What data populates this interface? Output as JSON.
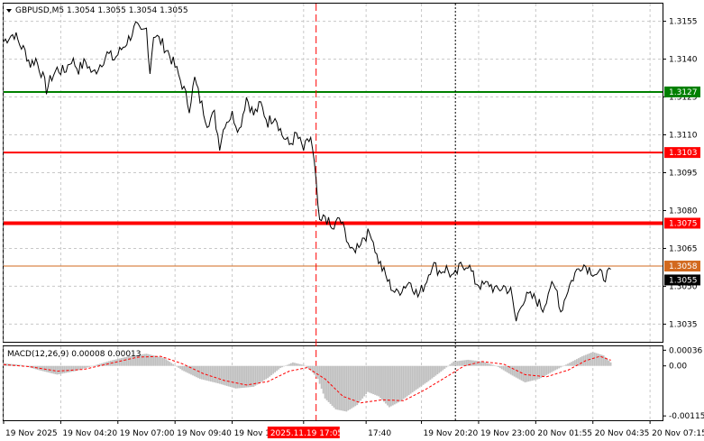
{
  "header": {
    "symbol_line": "GBPUSD,M5  1.3054 1.3055 1.3054 1.3055"
  },
  "colors": {
    "price_line": "#000000",
    "grid": "#c8c8c8",
    "level_green": "#008000",
    "level_red": "#ff0000",
    "level_orange": "#d2691e",
    "macd_hist": "#c0c0c0",
    "macd_signal": "#ff0000",
    "vline_red": "#ff0000"
  },
  "chart_data": [
    {
      "type": "line",
      "ylim": [
        1.3028,
        1.3162
      ],
      "y_ticks": [
        "1.3155",
        "1.3140",
        "1.3125",
        "1.3110",
        "1.3095",
        "1.3080",
        "1.3065",
        "1.3050",
        "1.3035"
      ],
      "y_tick_values": [
        1.3155,
        1.314,
        1.3125,
        1.311,
        1.3095,
        1.308,
        1.3065,
        1.305,
        1.3035
      ],
      "x_labels": [
        "19 Nov 2025",
        "19 Nov 04:20",
        "19 Nov 07:00",
        "19 Nov 09:40",
        "19 Nov 12:20",
        "2025.11.19 17:05",
        "17:40",
        "19 Nov 20:20",
        "19 Nov 23:00",
        "20 Nov 01:55",
        "20 Nov 04:35",
        "20 Nov 07:15"
      ],
      "x_label_index": [
        0,
        32,
        64,
        96,
        128,
        168,
        203,
        234,
        266,
        298,
        330,
        362
      ],
      "n_points": 370,
      "price_anchors": [
        [
          0,
          1.3147
        ],
        [
          3,
          1.3149
        ],
        [
          6,
          1.315
        ],
        [
          9,
          1.3146
        ],
        [
          12,
          1.3143
        ],
        [
          15,
          1.3138
        ],
        [
          18,
          1.314
        ],
        [
          21,
          1.3135
        ],
        [
          24,
          1.3128
        ],
        [
          27,
          1.3133
        ],
        [
          30,
          1.3136
        ],
        [
          34,
          1.3135
        ],
        [
          38,
          1.314
        ],
        [
          42,
          1.3136
        ],
        [
          46,
          1.3139
        ],
        [
          50,
          1.3134
        ],
        [
          54,
          1.3138
        ],
        [
          58,
          1.3142
        ],
        [
          62,
          1.314
        ],
        [
          66,
          1.3144
        ],
        [
          70,
          1.3148
        ],
        [
          74,
          1.3153
        ],
        [
          77,
          1.315
        ],
        [
          80,
          1.3152
        ],
        [
          82,
          1.3135
        ],
        [
          84,
          1.315
        ],
        [
          88,
          1.3147
        ],
        [
          92,
          1.3143
        ],
        [
          96,
          1.3137
        ],
        [
          100,
          1.313
        ],
        [
          104,
          1.3121
        ],
        [
          107,
          1.3132
        ],
        [
          110,
          1.3124
        ],
        [
          114,
          1.3115
        ],
        [
          118,
          1.3118
        ],
        [
          121,
          1.3106
        ],
        [
          124,
          1.3115
        ],
        [
          128,
          1.3118
        ],
        [
          132,
          1.3112
        ],
        [
          136,
          1.3125
        ],
        [
          140,
          1.3118
        ],
        [
          144,
          1.3122
        ],
        [
          148,
          1.3115
        ],
        [
          152,
          1.3118
        ],
        [
          156,
          1.311
        ],
        [
          160,
          1.3106
        ],
        [
          164,
          1.311
        ],
        [
          168,
          1.3104
        ],
        [
          172,
          1.3109
        ],
        [
          174,
          1.3098
        ],
        [
          177,
          1.3074
        ],
        [
          180,
          1.3078
        ],
        [
          184,
          1.3072
        ],
        [
          188,
          1.3077
        ],
        [
          192,
          1.307
        ],
        [
          195,
          1.3063
        ],
        [
          198,
          1.3066
        ],
        [
          202,
          1.307
        ],
        [
          206,
          1.3071
        ],
        [
          209,
          1.3062
        ],
        [
          212,
          1.3057
        ],
        [
          216,
          1.3051
        ],
        [
          220,
          1.3047
        ],
        [
          224,
          1.305
        ],
        [
          228,
          1.3052
        ],
        [
          232,
          1.3046
        ],
        [
          236,
          1.3051
        ],
        [
          240,
          1.3059
        ],
        [
          244,
          1.3056
        ],
        [
          248,
          1.3057
        ],
        [
          252,
          1.3053
        ],
        [
          256,
          1.3058
        ],
        [
          260,
          1.3059
        ],
        [
          264,
          1.3052
        ],
        [
          268,
          1.305
        ],
        [
          272,
          1.3051
        ],
        [
          276,
          1.3048
        ],
        [
          280,
          1.305
        ],
        [
          284,
          1.3048
        ],
        [
          287,
          1.3036
        ],
        [
          290,
          1.3044
        ],
        [
          294,
          1.3046
        ],
        [
          298,
          1.3045
        ],
        [
          302,
          1.3041
        ],
        [
          306,
          1.305
        ],
        [
          310,
          1.3048
        ],
        [
          312,
          1.304
        ],
        [
          316,
          1.3049
        ],
        [
          320,
          1.3055
        ],
        [
          324,
          1.3059
        ],
        [
          328,
          1.3057
        ],
        [
          332,
          1.3055
        ],
        [
          336,
          1.3054
        ],
        [
          340,
          1.3055
        ]
      ],
      "levels": [
        {
          "label": "1.3127",
          "value": 1.3127,
          "color": "#008000",
          "width": 2
        },
        {
          "label": "1.3103",
          "value": 1.3103,
          "color": "#ff0000",
          "width": 2
        },
        {
          "label": "1.3075",
          "value": 1.3075,
          "color": "#ff0000",
          "width": 4
        },
        {
          "label": "1.3058",
          "value": 1.3058,
          "color": "#d2691e",
          "width": 1
        }
      ],
      "current_price": "1.3055",
      "current_price_value": 1.3055,
      "vertical_line_index": 175,
      "dotted_line_index": 253
    },
    {
      "type": "bar",
      "title": "MACD(12,26,9) 0.00008 0.00013",
      "ylim": [
        -0.00125,
        0.00045
      ],
      "y_ticks": [
        "0.00036",
        "0.00",
        "-0.00115"
      ],
      "y_tick_values": [
        0.00036,
        0.0,
        -0.00115
      ],
      "hist_anchors": [
        [
          0,
          6e-05
        ],
        [
          10,
          2e-05
        ],
        [
          20,
          -0.0001
        ],
        [
          30,
          -0.0002
        ],
        [
          40,
          -0.00012
        ],
        [
          50,
          0.0
        ],
        [
          60,
          0.00012
        ],
        [
          70,
          0.00022
        ],
        [
          80,
          0.00028
        ],
        [
          90,
          0.00018
        ],
        [
          100,
          -0.0001
        ],
        [
          110,
          -0.0003
        ],
        [
          120,
          -0.0004
        ],
        [
          130,
          -0.00052
        ],
        [
          140,
          -0.00048
        ],
        [
          148,
          -0.00028
        ],
        [
          155,
          -5e-05
        ],
        [
          162,
          8e-05
        ],
        [
          168,
          2e-05
        ],
        [
          172,
          -0.0001
        ],
        [
          176,
          -0.0003
        ],
        [
          180,
          -0.00075
        ],
        [
          186,
          -0.001
        ],
        [
          192,
          -0.00105
        ],
        [
          198,
          -0.0009
        ],
        [
          204,
          -0.0006
        ],
        [
          210,
          -0.0007
        ],
        [
          216,
          -0.00095
        ],
        [
          222,
          -0.00082
        ],
        [
          230,
          -0.00058
        ],
        [
          238,
          -0.00035
        ],
        [
          246,
          -0.0001
        ],
        [
          252,
          0.0001
        ],
        [
          260,
          0.00014
        ],
        [
          268,
          0.0001
        ],
        [
          276,
          0.0
        ],
        [
          284,
          -0.0002
        ],
        [
          292,
          -0.00038
        ],
        [
          300,
          -0.0003
        ],
        [
          308,
          -0.00012
        ],
        [
          316,
          5e-05
        ],
        [
          324,
          0.00022
        ],
        [
          330,
          0.00032
        ],
        [
          336,
          0.00024
        ],
        [
          340,
          8e-05
        ]
      ],
      "signal_anchors": [
        [
          0,
          3e-05
        ],
        [
          15,
          -2e-05
        ],
        [
          30,
          -0.00012
        ],
        [
          45,
          -8e-05
        ],
        [
          60,
          6e-05
        ],
        [
          75,
          0.0002
        ],
        [
          88,
          0.00022
        ],
        [
          100,
          5e-05
        ],
        [
          112,
          -0.00018
        ],
        [
          124,
          -0.00034
        ],
        [
          136,
          -0.00044
        ],
        [
          148,
          -0.00036
        ],
        [
          160,
          -0.00012
        ],
        [
          170,
          -4e-05
        ],
        [
          180,
          -0.0003
        ],
        [
          190,
          -0.0007
        ],
        [
          200,
          -0.00085
        ],
        [
          212,
          -0.00078
        ],
        [
          224,
          -0.0008
        ],
        [
          236,
          -0.00055
        ],
        [
          248,
          -0.00025
        ],
        [
          258,
          0.0
        ],
        [
          268,
          0.0001
        ],
        [
          280,
          4e-05
        ],
        [
          292,
          -0.0002
        ],
        [
          304,
          -0.00025
        ],
        [
          316,
          -0.0001
        ],
        [
          326,
          0.00012
        ],
        [
          334,
          0.00022
        ],
        [
          340,
          0.00013
        ]
      ]
    }
  ]
}
